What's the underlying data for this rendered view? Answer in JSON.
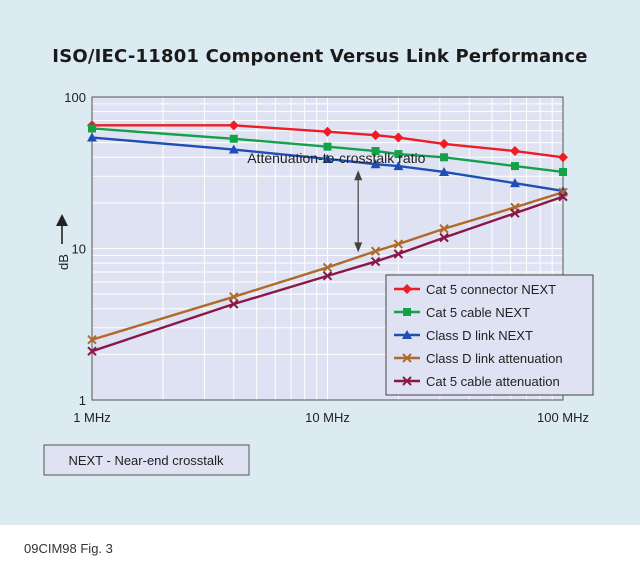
{
  "chart_data": {
    "type": "line",
    "title": "ISO/IEC-11801 Component Versus Link Performance",
    "xlabel": "",
    "ylabel": "dB",
    "xscale": "log",
    "yscale": "log",
    "xlim": [
      1,
      100
    ],
    "ylim": [
      1,
      100
    ],
    "xticks": [
      {
        "value": 1,
        "label": "1 MHz"
      },
      {
        "value": 10,
        "label": "10 MHz"
      },
      {
        "value": 100,
        "label": "100 MHz"
      }
    ],
    "yticks": [
      {
        "value": 1,
        "label": "1"
      },
      {
        "value": 10,
        "label": "10"
      },
      {
        "value": 100,
        "label": "100"
      }
    ],
    "grid": true,
    "legend_position": "bottom-right",
    "x": [
      1,
      4,
      10,
      16,
      20,
      31.25,
      62.5,
      100
    ],
    "series": [
      {
        "name": "Cat 5 connector NEXT",
        "color": "#ee1c24",
        "marker": "diamond",
        "values": [
          65,
          65,
          59,
          56,
          54,
          49,
          44,
          40
        ]
      },
      {
        "name": "Cat 5 cable NEXT",
        "color": "#15a04a",
        "marker": "square",
        "values": [
          62,
          53,
          47,
          44,
          42,
          40,
          35,
          32
        ]
      },
      {
        "name": "Class D link NEXT",
        "color": "#1f4fb4",
        "marker": "triangle",
        "values": [
          54,
          45,
          39,
          36,
          35,
          32,
          27,
          24
        ]
      },
      {
        "name": "Class D link attenuation",
        "color": "#b06a2a",
        "marker": "x",
        "values": [
          2.5,
          4.8,
          7.5,
          9.6,
          10.7,
          13.5,
          18.7,
          23.5
        ]
      },
      {
        "name": "Cat 5 cable attenuation",
        "color": "#8b1747",
        "marker": "x",
        "values": [
          2.1,
          4.3,
          6.6,
          8.2,
          9.2,
          11.8,
          17.1,
          22
        ]
      }
    ],
    "annotations": [
      {
        "text": "Attenuation-to-crosstalk ratio",
        "x": 13,
        "y": 27
      }
    ],
    "note": "NEXT - Near-end crosstalk"
  },
  "caption": "09CIM98 Fig. 3",
  "colors": {
    "background": "#dceaf1",
    "plot_bg": "#dfe2f3",
    "grid": "#ffffff"
  }
}
